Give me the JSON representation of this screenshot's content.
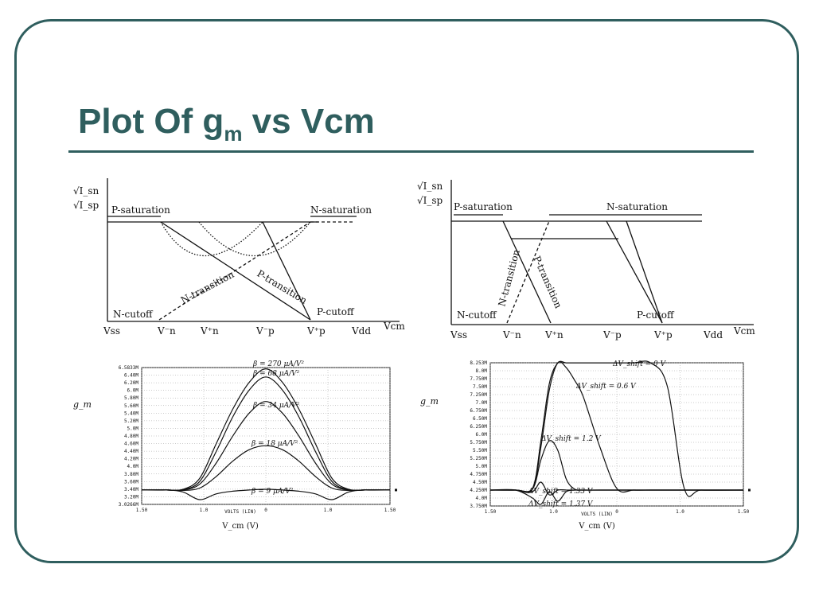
{
  "slide": {
    "title_main": "Plot Of g",
    "title_sub": "m",
    "title_tail": " vs Vcm",
    "colors": {
      "accent": "#2f5e5e"
    }
  },
  "diagram_left": {
    "ylabel_top": "√I_sn",
    "ylabel_bottom": "√I_sp",
    "p_saturation": "P-saturation",
    "n_saturation": "N-saturation",
    "n_transition": "N-transition",
    "p_transition": "P-transition",
    "n_cutoff": "N-cutoff",
    "p_cutoff": "P-cutoff",
    "xticks": [
      "Vss",
      "V⁻n",
      "V⁺n",
      "V⁻p",
      "V⁺p",
      "Vdd"
    ],
    "xlabel": "Vcm"
  },
  "diagram_right": {
    "ylabel_top": "√I_sn",
    "ylabel_bottom": "√I_sp",
    "p_saturation": "P-saturation",
    "n_saturation": "N-saturation",
    "n_transition": "N-transition",
    "p_transition": "P-transition",
    "n_cutoff": "N-cutoff",
    "p_cutoff": "P-cutoff",
    "xticks": [
      "Vss",
      "V⁻n",
      "V⁺n",
      "V⁻p",
      "V⁺p",
      "Vdd"
    ],
    "xlabel": "Vcm"
  },
  "chart_data": [
    {
      "type": "line",
      "ylabel": "g_m",
      "xlabel": "V_cm (V)",
      "x_axis_caption": "VOLTS (LIN)",
      "xticks": [
        "1.50",
        "1.0",
        "0",
        "1.0",
        "1.50"
      ],
      "yticks": [
        "6.5833M",
        "6.40M",
        "6.20M",
        "6.0M",
        "5.80M",
        "5.60M",
        "5.40M",
        "5.20M",
        "5.0M",
        "4.80M",
        "4.60M",
        "4.40M",
        "4.20M",
        "4.0M",
        "3.80M",
        "3.60M",
        "3.40M",
        "3.20M",
        "3.0266M"
      ],
      "x": [
        -1.5,
        -1.2,
        -1.0,
        -0.8,
        -0.6,
        -0.4,
        -0.2,
        0.0,
        0.2,
        0.4,
        0.6,
        0.8,
        1.0,
        1.2,
        1.5
      ],
      "series": [
        {
          "name": "β = 270 μA/V²",
          "values": [
            3.4,
            3.4,
            3.42,
            3.7,
            4.6,
            5.5,
            6.2,
            6.55,
            6.2,
            5.5,
            4.6,
            3.7,
            3.42,
            3.4,
            3.4
          ]
        },
        {
          "name": "β = 68 μA/V²",
          "values": [
            3.4,
            3.4,
            3.41,
            3.62,
            4.4,
            5.3,
            6.0,
            6.34,
            6.0,
            5.3,
            4.4,
            3.62,
            3.41,
            3.4,
            3.4
          ]
        },
        {
          "name": "β = 34 μA/V²",
          "values": [
            3.4,
            3.4,
            3.4,
            3.55,
            4.1,
            4.8,
            5.4,
            5.7,
            5.4,
            4.8,
            4.1,
            3.55,
            3.4,
            3.4,
            3.4
          ]
        },
        {
          "name": "β = 18 μA/V²",
          "values": [
            3.4,
            3.4,
            3.39,
            3.45,
            3.75,
            4.15,
            4.45,
            4.55,
            4.45,
            4.15,
            3.75,
            3.45,
            3.39,
            3.4,
            3.4
          ]
        },
        {
          "name": "β = 9 μA/V²",
          "values": [
            3.4,
            3.4,
            3.35,
            3.15,
            3.3,
            3.37,
            3.4,
            3.42,
            3.4,
            3.37,
            3.3,
            3.15,
            3.35,
            3.4,
            3.4
          ]
        }
      ]
    },
    {
      "type": "line",
      "ylabel": "g_m",
      "xlabel": "V_cm (V)",
      "x_axis_caption": "VOLTS (LIN)",
      "xticks": [
        "1.50",
        "1.0",
        "0",
        "1.0",
        "1.50"
      ],
      "yticks": [
        "8.253M",
        "8.0M",
        "7.750M",
        "7.50M",
        "7.250M",
        "7.0M",
        "6.750M",
        "6.50M",
        "6.250M",
        "6.0M",
        "5.750M",
        "5.50M",
        "5.250M",
        "5.0M",
        "4.750M",
        "4.50M",
        "4.250M",
        "4.0M",
        "3.750M"
      ],
      "x": [
        -1.5,
        -1.2,
        -1.0,
        -0.9,
        -0.8,
        -0.7,
        -0.6,
        -0.5,
        -0.4,
        -0.2,
        0.0,
        0.2,
        0.4,
        0.6,
        0.8,
        1.0,
        1.5
      ],
      "series": [
        {
          "name": "ΔV_shift = 0 V",
          "values": [
            4.25,
            4.25,
            4.3,
            5.8,
            7.6,
            8.25,
            8.25,
            8.25,
            8.25,
            8.25,
            8.25,
            8.25,
            8.25,
            7.5,
            4.3,
            4.25,
            4.25
          ]
        },
        {
          "name": "ΔV_shift = 0.6 V",
          "values": [
            4.25,
            4.25,
            4.28,
            5.6,
            7.4,
            8.25,
            8.1,
            7.7,
            7.2,
            5.6,
            4.3,
            4.25,
            4.25,
            4.25,
            4.25,
            4.25,
            4.25
          ]
        },
        {
          "name": "ΔV_shift = 1.2 V",
          "values": [
            4.25,
            4.25,
            4.28,
            5.2,
            5.8,
            5.5,
            4.6,
            4.28,
            4.25,
            4.25,
            4.25,
            4.25,
            4.25,
            4.25,
            4.25,
            4.25,
            4.25
          ]
        },
        {
          "name": "ΔV_shift = 1.33 V",
          "values": [
            4.25,
            4.25,
            4.2,
            4.5,
            4.1,
            4.25,
            4.25,
            4.25,
            4.25,
            4.25,
            4.25,
            4.25,
            4.25,
            4.25,
            4.25,
            4.25,
            4.25
          ]
        },
        {
          "name": "ΔV_shift = 1.37 V",
          "values": [
            4.25,
            4.25,
            4.0,
            3.8,
            4.2,
            3.9,
            4.2,
            4.25,
            4.25,
            4.25,
            4.25,
            4.25,
            4.25,
            4.25,
            4.25,
            4.25,
            4.25
          ]
        }
      ]
    }
  ]
}
